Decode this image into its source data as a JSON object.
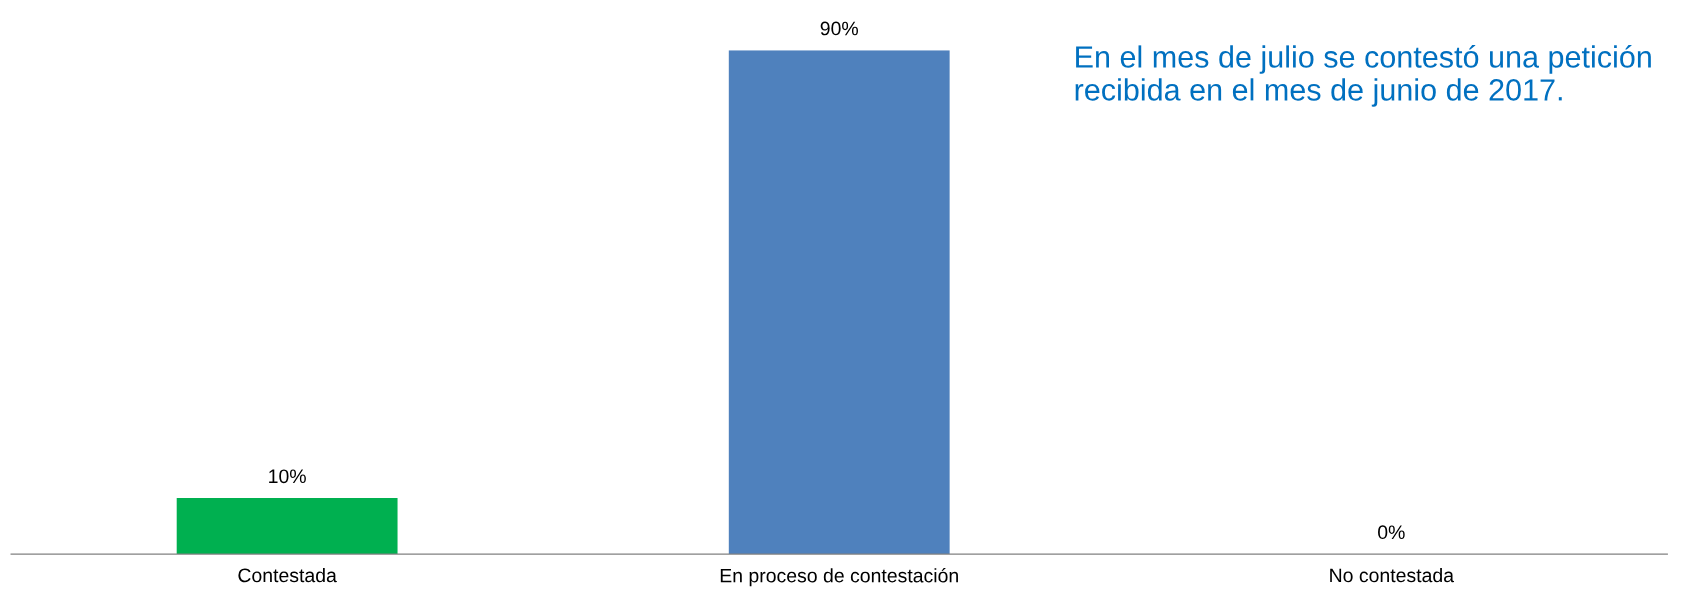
{
  "chart_data": {
    "type": "bar",
    "categories": [
      "Contestada",
      "En proceso de contestación",
      "No contestada"
    ],
    "values": [
      10,
      90,
      0
    ],
    "colors": [
      "#00b050",
      "#4f81bd",
      "#4f81bd"
    ],
    "value_labels": [
      "10%",
      "90%",
      "0%"
    ],
    "annotations": [
      "En el mes de julio se contestó una petición recibida en el mes de junio de 2017."
    ],
    "tick_labels": "x",
    "grid": false
  }
}
